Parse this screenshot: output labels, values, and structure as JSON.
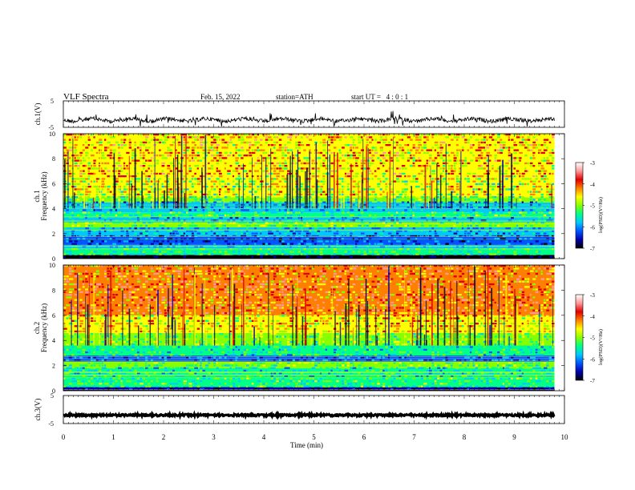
{
  "header": {
    "title": "VLF Spectra",
    "date": "Feb. 15, 2022",
    "station": "station=ATH",
    "start": "start UT =   4 : 0 : 1"
  },
  "chart_data": [
    {
      "type": "line",
      "name": "ch1-waveform",
      "ylabel": "ch.1(V)",
      "ylim": [
        -5,
        5
      ],
      "yticks": [
        "5",
        "-5"
      ],
      "xlim": [
        0,
        10
      ],
      "x_end_min": 9.8,
      "baseline_v": -2.2,
      "line_color": "#000000"
    },
    {
      "type": "heatmap",
      "name": "ch1-spectrogram",
      "ylabel": "Frequency (kHz)",
      "channel_label": "ch.1",
      "ylim": [
        0,
        10
      ],
      "yticks": [
        "0",
        "2",
        "4",
        "6",
        "8",
        "10"
      ],
      "xlim": [
        0,
        10
      ],
      "x_end_min": 9.8,
      "bands_khz": [
        {
          "from": 0,
          "to": 0.3,
          "level": -7
        },
        {
          "from": 0.3,
          "to": 0.8,
          "level": -5.4
        },
        {
          "from": 0.8,
          "to": 1.1,
          "level": -5.8
        },
        {
          "from": 1.1,
          "to": 1.8,
          "level": -6.3
        },
        {
          "from": 1.8,
          "to": 2.5,
          "level": -5.9
        },
        {
          "from": 2.5,
          "to": 2.9,
          "level": -5.2
        },
        {
          "from": 2.9,
          "to": 3.3,
          "level": -5.9
        },
        {
          "from": 3.3,
          "to": 3.7,
          "level": -5.3
        },
        {
          "from": 3.7,
          "to": 4.5,
          "level": -5.9
        },
        {
          "from": 4.5,
          "to": 4.9,
          "level": -5.2
        },
        {
          "from": 4.9,
          "to": 6.5,
          "level": -4.8
        },
        {
          "from": 6.5,
          "to": 10,
          "level": -4.4
        }
      ],
      "colorbar": {
        "label": "log(PSD)(V²/Hz)",
        "range": [
          -7,
          -3
        ],
        "ticks": [
          "-3",
          "-4",
          "-5",
          "-6",
          "-7"
        ]
      }
    },
    {
      "type": "heatmap",
      "name": "ch2-spectrogram",
      "ylabel": "Frequency (kHz)",
      "channel_label": "ch.2",
      "ylim": [
        0,
        10
      ],
      "yticks": [
        "0",
        "2",
        "4",
        "6",
        "8",
        "10"
      ],
      "xlim": [
        0,
        10
      ],
      "x_end_min": 9.8,
      "bands_khz": [
        {
          "from": 0,
          "to": 0.3,
          "level": -6.8
        },
        {
          "from": 0.3,
          "to": 1.0,
          "level": -5.3
        },
        {
          "from": 1.0,
          "to": 1.8,
          "level": -5.6
        },
        {
          "from": 1.8,
          "to": 2.3,
          "level": -5.2
        },
        {
          "from": 2.3,
          "to": 2.8,
          "level": -6.2
        },
        {
          "from": 2.8,
          "to": 3.6,
          "level": -5.5
        },
        {
          "from": 3.6,
          "to": 4.6,
          "level": -5.1
        },
        {
          "from": 4.6,
          "to": 6.0,
          "level": -4.5
        },
        {
          "from": 6.0,
          "to": 10,
          "level": -4.1
        }
      ],
      "colorbar": {
        "label": "log(PSD)(V²/Hz)",
        "range": [
          -7,
          -3
        ],
        "ticks": [
          "-3",
          "-4",
          "-5",
          "-6",
          "-7"
        ]
      }
    },
    {
      "type": "line",
      "name": "ch3-waveform",
      "ylabel": "ch.3(V)",
      "ylim": [
        -5,
        5
      ],
      "yticks": [
        "5",
        "-5"
      ],
      "xlim": [
        0,
        10
      ],
      "x_end_min": 9.8,
      "baseline_v": -2.0,
      "line_color": "#000000"
    }
  ],
  "x_axis": {
    "label": "Time (min)",
    "ticks": [
      "0",
      "1",
      "2",
      "3",
      "4",
      "5",
      "6",
      "7",
      "8",
      "9",
      "10"
    ]
  },
  "colormap": [
    "#000000",
    "#0000aa",
    "#0055ff",
    "#00c8ff",
    "#00ff88",
    "#88ff00",
    "#ffff00",
    "#ff7f00",
    "#e00000",
    "#ff9999",
    "#ffffff"
  ]
}
